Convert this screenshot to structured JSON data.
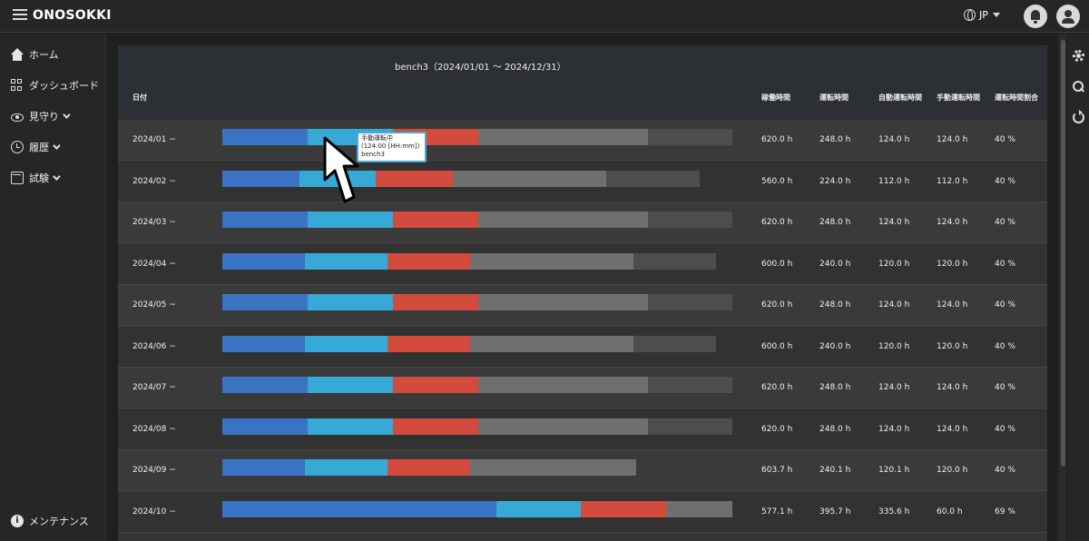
{
  "app": {
    "brand": "ONOSOKKI",
    "lang": "JP"
  },
  "sidebar": {
    "items": [
      {
        "label": "ホーム"
      },
      {
        "label": "ダッシュボード"
      },
      {
        "label": "見守り"
      },
      {
        "label": "履歴"
      },
      {
        "label": "試験"
      }
    ],
    "footer": "メンテナンス"
  },
  "panel": {
    "title": "bench3（2024/01/01 ～ 2024/12/31）",
    "headers": {
      "date": "日付",
      "operating": "稼働時間",
      "running": "運転時間",
      "auto": "自動運転時間",
      "manual": "手動運転時間",
      "ratio": "運転時間割合"
    }
  },
  "colors": {
    "auto": "#3a72c4",
    "manual": "#37a9d6",
    "red": "#d24b3c",
    "gray1": "#6f6f6f",
    "gray2": "#4d4d4d"
  },
  "rows": [
    {
      "date": "2024/01 ~",
      "operating": "620.0 h",
      "running": "248.0 h",
      "auto": "124.0 h",
      "manual": "124.0 h",
      "ratio": "40 %",
      "segments": [
        94,
        94,
        94,
        187,
        93
      ]
    },
    {
      "date": "2024/02 ~",
      "operating": "560.0 h",
      "running": "224.0 h",
      "auto": "112.0 h",
      "manual": "112.0 h",
      "ratio": "40 %",
      "segments": [
        85,
        84,
        85,
        169,
        103
      ]
    },
    {
      "date": "2024/03 ~",
      "operating": "620.0 h",
      "running": "248.0 h",
      "auto": "124.0 h",
      "manual": "124.0 h",
      "ratio": "40 %",
      "segments": [
        94,
        94,
        94,
        187,
        93
      ]
    },
    {
      "date": "2024/04 ~",
      "operating": "600.0 h",
      "running": "240.0 h",
      "auto": "120.0 h",
      "manual": "120.0 h",
      "ratio": "40 %",
      "segments": [
        91,
        91,
        91,
        180,
        91
      ]
    },
    {
      "date": "2024/05 ~",
      "operating": "620.0 h",
      "running": "248.0 h",
      "auto": "124.0 h",
      "manual": "124.0 h",
      "ratio": "40 %",
      "segments": [
        94,
        94,
        94,
        187,
        93
      ]
    },
    {
      "date": "2024/06 ~",
      "operating": "600.0 h",
      "running": "240.0 h",
      "auto": "120.0 h",
      "manual": "120.0 h",
      "ratio": "40 %",
      "segments": [
        91,
        91,
        91,
        180,
        91
      ]
    },
    {
      "date": "2024/07 ~",
      "operating": "620.0 h",
      "running": "248.0 h",
      "auto": "124.0 h",
      "manual": "124.0 h",
      "ratio": "40 %",
      "segments": [
        94,
        94,
        94,
        187,
        93
      ]
    },
    {
      "date": "2024/08 ~",
      "operating": "620.0 h",
      "running": "248.0 h",
      "auto": "124.0 h",
      "manual": "124.0 h",
      "ratio": "40 %",
      "segments": [
        94,
        94,
        94,
        187,
        93
      ]
    },
    {
      "date": "2024/09 ~",
      "operating": "603.7 h",
      "running": "240.1 h",
      "auto": "120.1 h",
      "manual": "120.0 h",
      "ratio": "40 %",
      "segments": [
        91,
        91,
        91,
        183,
        0
      ]
    },
    {
      "date": "2024/10 ~",
      "operating": "577.1 h",
      "running": "395.7 h",
      "auto": "335.6 h",
      "manual": "60.0 h",
      "ratio": "69 %",
      "segments": [
        302,
        93,
        94,
        73,
        0
      ]
    }
  ],
  "tooltip": {
    "line1": "手動運転中",
    "line2": "(124:00 [HH:mm])",
    "line3": "bench3"
  }
}
